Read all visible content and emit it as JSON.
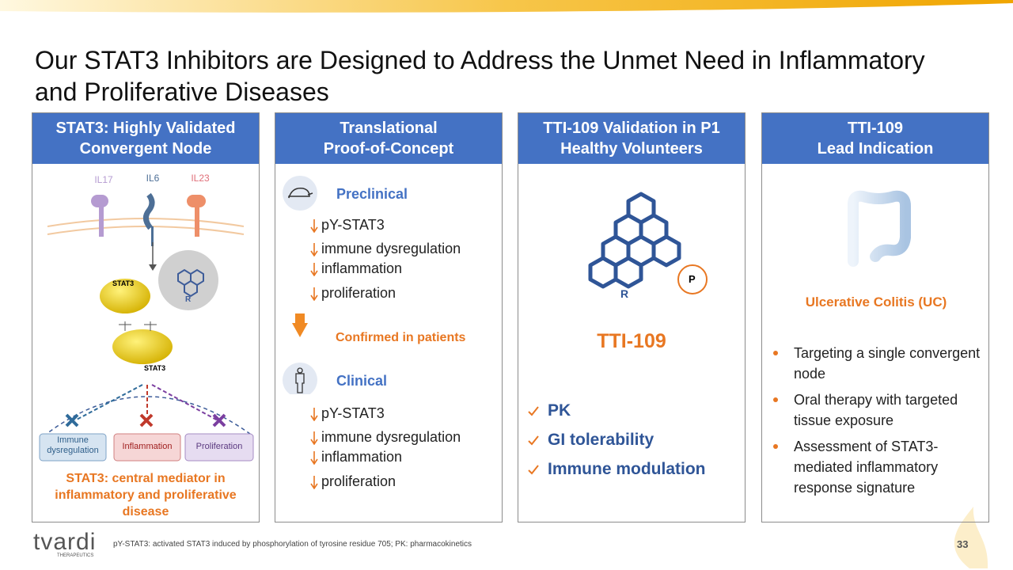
{
  "title": "Our STAT3 Inhibitors are Designed to Address the Unmet Need in Inflammatory and Proliferative Diseases",
  "panels": [
    {
      "header": [
        "STAT3: Highly Validated",
        "Convergent Node"
      ],
      "cytokines": [
        "IL17",
        "IL6",
        "IL23"
      ],
      "protein_labels": [
        "STAT3",
        "STAT3",
        "R"
      ],
      "outcomes": [
        "Immune dysregulation",
        "Inflammation",
        "Proliferation"
      ],
      "caption": "STAT3: central mediator in inflammatory and proliferative disease"
    },
    {
      "header": [
        "Translational",
        "Proof-of-Concept"
      ],
      "sections": [
        {
          "label": "Preclinical",
          "items": [
            "pY-STAT3",
            "immune dysregulation",
            "inflammation",
            "proliferation"
          ]
        },
        {
          "label": "Clinical",
          "items": [
            "pY-STAT3",
            "immune dysregulation",
            "inflammation",
            "proliferation"
          ]
        }
      ],
      "arrow_label": "Confirmed in patients"
    },
    {
      "header": [
        "TTI-109 Validation in P1",
        "Healthy Volunteers"
      ],
      "molecule_labels": [
        "R",
        "P"
      ],
      "drug": "TTI-109",
      "checks": [
        "PK",
        "GI tolerability",
        "Immune modulation"
      ]
    },
    {
      "header": [
        "TTI-109",
        "Lead Indication"
      ],
      "indication": "Ulcerative Colitis (UC)",
      "bullets": [
        "Targeting a single convergent node",
        "Oral therapy with targeted tissue exposure",
        "Assessment of STAT3-mediated inflammatory response signature"
      ]
    }
  ],
  "footer": {
    "logo": "tvardi",
    "logo_sub": "THERAPEUTICS",
    "footnote": "pY-STAT3: activated STAT3 induced by phosphorylation of tyrosine residue 705; PK: pharmacokinetics",
    "page": "33"
  }
}
